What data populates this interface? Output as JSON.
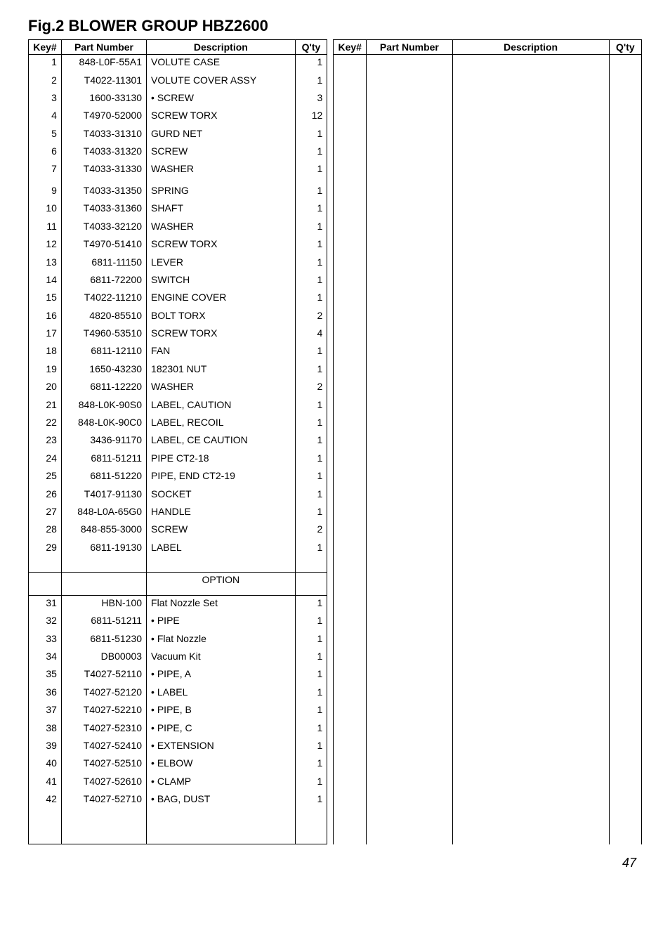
{
  "page_title": "Fig.2 BLOWER GROUP HBZ2600",
  "headers": {
    "key": "Key#",
    "part_number": "Part Number",
    "description": "Description",
    "qty": "Q'ty"
  },
  "option_label": "OPTION",
  "page_number": "47",
  "main_rows": [
    {
      "key": "1",
      "pn": "848-L0F-55A1",
      "desc": "VOLUTE CASE",
      "qty": "1"
    },
    {
      "key": "2",
      "pn": "T4022-11301",
      "desc": "VOLUTE COVER ASSY",
      "qty": "1"
    },
    {
      "key": "3",
      "pn": "1600-33130",
      "desc": "• SCREW",
      "qty": "3"
    },
    {
      "key": "4",
      "pn": "T4970-52000",
      "desc": "SCREW TORX",
      "qty": "12"
    },
    {
      "key": "5",
      "pn": "T4033-31310",
      "desc": "GURD NET",
      "qty": "1"
    },
    {
      "key": "6",
      "pn": "T4033-31320",
      "desc": "SCREW",
      "qty": "1"
    },
    {
      "key": "7",
      "pn": "T4033-31330",
      "desc": "WASHER",
      "qty": "1"
    },
    {
      "key": "",
      "pn": "",
      "desc": "",
      "qty": ""
    },
    {
      "key": "9",
      "pn": "T4033-31350",
      "desc": "SPRING",
      "qty": "1"
    },
    {
      "key": "10",
      "pn": "T4033-31360",
      "desc": "SHAFT",
      "qty": "1"
    },
    {
      "key": "11",
      "pn": "T4033-32120",
      "desc": "WASHER",
      "qty": "1"
    },
    {
      "key": "12",
      "pn": "T4970-51410",
      "desc": "SCREW TORX",
      "qty": "1"
    },
    {
      "key": "13",
      "pn": "6811-11150",
      "desc": "LEVER",
      "qty": "1"
    },
    {
      "key": "14",
      "pn": "6811-72200",
      "desc": "SWITCH",
      "qty": "1"
    },
    {
      "key": "15",
      "pn": "T4022-11210",
      "desc": "ENGINE COVER",
      "qty": "1"
    },
    {
      "key": "16",
      "pn": "4820-85510",
      "desc": "BOLT TORX",
      "qty": "2"
    },
    {
      "key": "17",
      "pn": "T4960-53510",
      "desc": "SCREW TORX",
      "qty": "4"
    },
    {
      "key": "18",
      "pn": "6811-12110",
      "desc": "FAN",
      "qty": "1"
    },
    {
      "key": "19",
      "pn": "1650-43230",
      "desc": "182301 NUT",
      "qty": "1"
    },
    {
      "key": "20",
      "pn": "6811-12220",
      "desc": "WASHER",
      "qty": "2"
    },
    {
      "key": "21",
      "pn": "848-L0K-90S0",
      "desc": "LABEL, CAUTION",
      "qty": "1"
    },
    {
      "key": "22",
      "pn": "848-L0K-90C0",
      "desc": "LABEL, RECOIL",
      "qty": "1"
    },
    {
      "key": "23",
      "pn": "3436-91170",
      "desc": "LABEL, CE CAUTION",
      "qty": "1"
    },
    {
      "key": "24",
      "pn": "6811-51211",
      "desc": "PIPE CT2-18",
      "qty": "1"
    },
    {
      "key": "25",
      "pn": "6811-51220",
      "desc": "PIPE, END CT2-19",
      "qty": "1"
    },
    {
      "key": "26",
      "pn": "T4017-91130",
      "desc": "SOCKET",
      "qty": "1"
    },
    {
      "key": "27",
      "pn": "848-L0A-65G0",
      "desc": "HANDLE",
      "qty": "1"
    },
    {
      "key": "28",
      "pn": "848-855-3000",
      "desc": "SCREW",
      "qty": "2"
    },
    {
      "key": "29",
      "pn": "6811-19130",
      "desc": "LABEL",
      "qty": "1"
    }
  ],
  "option_rows": [
    {
      "key": "31",
      "pn": "HBN-100",
      "desc": "Flat Nozzle Set",
      "qty": "1"
    },
    {
      "key": "32",
      "pn": "6811-51211",
      "desc": "• PIPE",
      "qty": "1"
    },
    {
      "key": "33",
      "pn": "6811-51230",
      "desc": "• Flat Nozzle",
      "qty": "1"
    },
    {
      "key": "34",
      "pn": "DB00003",
      "desc": "Vacuum Kit",
      "qty": "1"
    },
    {
      "key": "35",
      "pn": "T4027-52110",
      "desc": "• PIPE, A",
      "qty": "1"
    },
    {
      "key": "36",
      "pn": "T4027-52120",
      "desc": "• LABEL",
      "qty": "1"
    },
    {
      "key": "37",
      "pn": "T4027-52210",
      "desc": "• PIPE, B",
      "qty": "1"
    },
    {
      "key": "38",
      "pn": "T4027-52310",
      "desc": "• PIPE, C",
      "qty": "1"
    },
    {
      "key": "39",
      "pn": "T4027-52410",
      "desc": "• EXTENSION",
      "qty": "1"
    },
    {
      "key": "40",
      "pn": "T4027-52510",
      "desc": "• ELBOW",
      "qty": "1"
    },
    {
      "key": "41",
      "pn": "T4027-52610",
      "desc": "• CLAMP",
      "qty": "1"
    },
    {
      "key": "42",
      "pn": "T4027-52710",
      "desc": "• BAG, DUST",
      "qty": "1"
    }
  ]
}
